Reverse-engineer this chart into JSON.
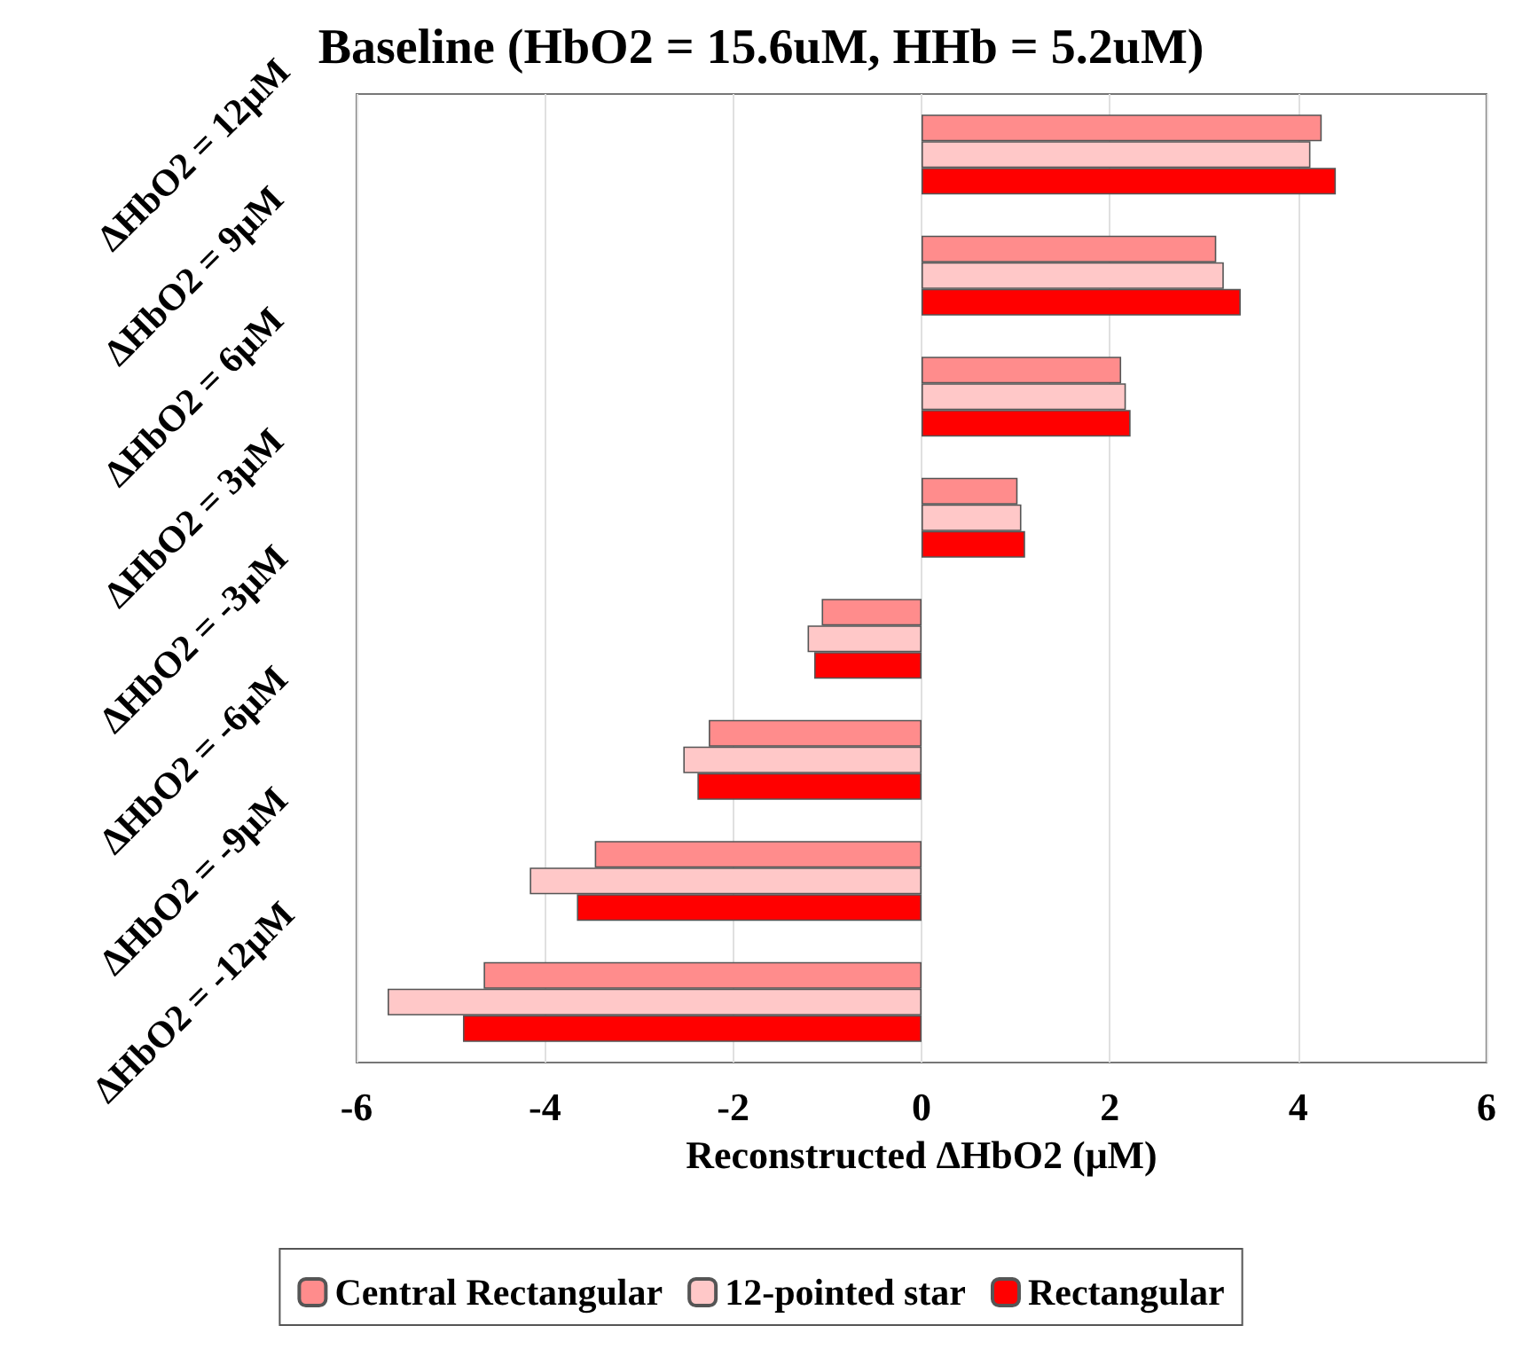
{
  "chart_data": {
    "type": "bar",
    "orientation": "horizontal",
    "title": "Baseline (HbO2 = 15.6uM, HHb = 5.2uM)",
    "xlabel": "Reconstructed ΔHbO2 (μM)",
    "categories": [
      "ΔHbO2 = 12μM",
      "ΔHbO2 = 9μM",
      "ΔHbO2 = 6μM",
      "ΔHbO2 = 3μM",
      "ΔHbO2 = -3μM",
      "ΔHbO2 = -6μM",
      "ΔHbO2 = -9μM",
      "ΔHbO2 = -12μM"
    ],
    "series": [
      {
        "name": "Central Rectangular",
        "color": "#ff8c8c",
        "values": [
          4.25,
          3.13,
          2.12,
          1.02,
          -1.06,
          -2.26,
          -3.47,
          -4.65
        ]
      },
      {
        "name": "12-pointed star",
        "color": "#ffc8c8",
        "values": [
          4.13,
          3.21,
          2.17,
          1.06,
          -1.21,
          -2.53,
          -4.16,
          -5.67
        ]
      },
      {
        "name": "Rectangular",
        "color": "#ff0000",
        "values": [
          4.4,
          3.39,
          2.22,
          1.1,
          -1.14,
          -2.38,
          -3.66,
          -4.87
        ]
      }
    ],
    "xlim": [
      -6,
      6
    ],
    "xticks": [
      -6,
      -4,
      -2,
      0,
      2,
      4,
      6
    ],
    "grid": "x",
    "legend": "bottom"
  }
}
